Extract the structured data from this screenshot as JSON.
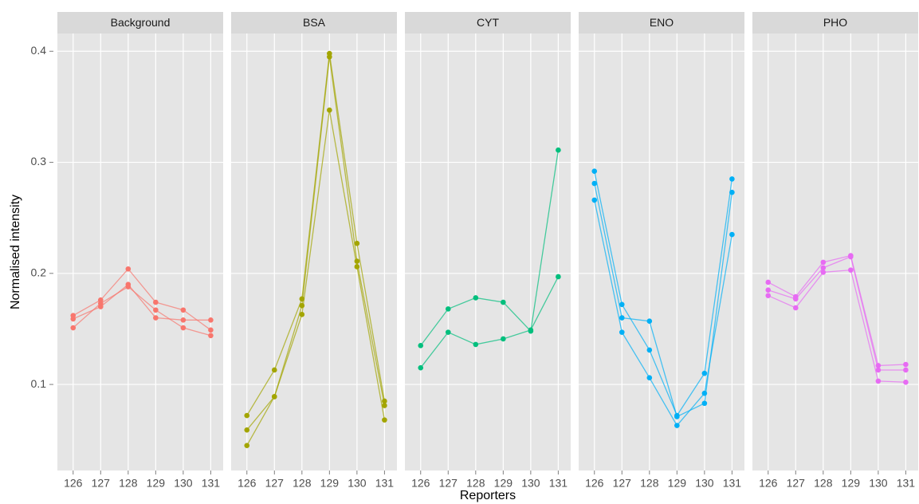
{
  "chart_data": {
    "type": "line",
    "x_label": "Reporters",
    "y_label": "Normalised intensity",
    "categories": [
      "126",
      "127",
      "128",
      "129",
      "130",
      "131"
    ],
    "ylim": [
      0.0225,
      0.416
    ],
    "yticks": [
      0.1,
      0.2,
      0.3,
      0.4
    ],
    "grid": true,
    "panels": [
      {
        "title": "Background",
        "color": "#F8766D",
        "series": [
          {
            "values": [
              0.162,
              0.176,
              0.204,
              0.174,
              0.167,
              0.149
            ]
          },
          {
            "values": [
              0.159,
              0.17,
              0.19,
              0.16,
              0.158,
              0.158
            ]
          },
          {
            "values": [
              0.151,
              0.173,
              0.188,
              0.167,
              0.151,
              0.144
            ]
          }
        ]
      },
      {
        "title": "BSA",
        "color": "#A3A500",
        "series": [
          {
            "values": [
              0.072,
              0.113,
              0.177,
              0.398,
              0.227,
              0.085
            ]
          },
          {
            "values": [
              0.059,
              0.089,
              0.171,
              0.395,
              0.211,
              0.081
            ]
          },
          {
            "values": [
              0.045,
              0.089,
              0.163,
              0.347,
              0.206,
              0.068
            ]
          }
        ]
      },
      {
        "title": "CYT",
        "color": "#00BF7D",
        "series": [
          {
            "values": [
              0.135,
              0.168,
              0.178,
              0.174,
              0.148,
              0.311
            ]
          },
          {
            "values": [
              0.115,
              0.147,
              0.136,
              0.141,
              0.149,
              0.197
            ]
          }
        ]
      },
      {
        "title": "ENO",
        "color": "#00B0F6",
        "series": [
          {
            "values": [
              0.292,
              0.172,
              0.131,
              0.072,
              0.11,
              0.285
            ]
          },
          {
            "values": [
              0.281,
              0.16,
              0.157,
              0.071,
              0.083,
              0.273
            ]
          },
          {
            "values": [
              0.266,
              0.147,
              0.106,
              0.063,
              0.092,
              0.235
            ]
          }
        ]
      },
      {
        "title": "PHO",
        "color": "#E76BF3",
        "series": [
          {
            "values": [
              0.192,
              0.179,
              0.21,
              0.216,
              0.117,
              0.118
            ]
          },
          {
            "values": [
              0.185,
              0.177,
              0.205,
              0.215,
              0.113,
              0.113
            ]
          },
          {
            "values": [
              0.18,
              0.169,
              0.201,
              0.203,
              0.103,
              0.102
            ]
          }
        ]
      }
    ]
  }
}
